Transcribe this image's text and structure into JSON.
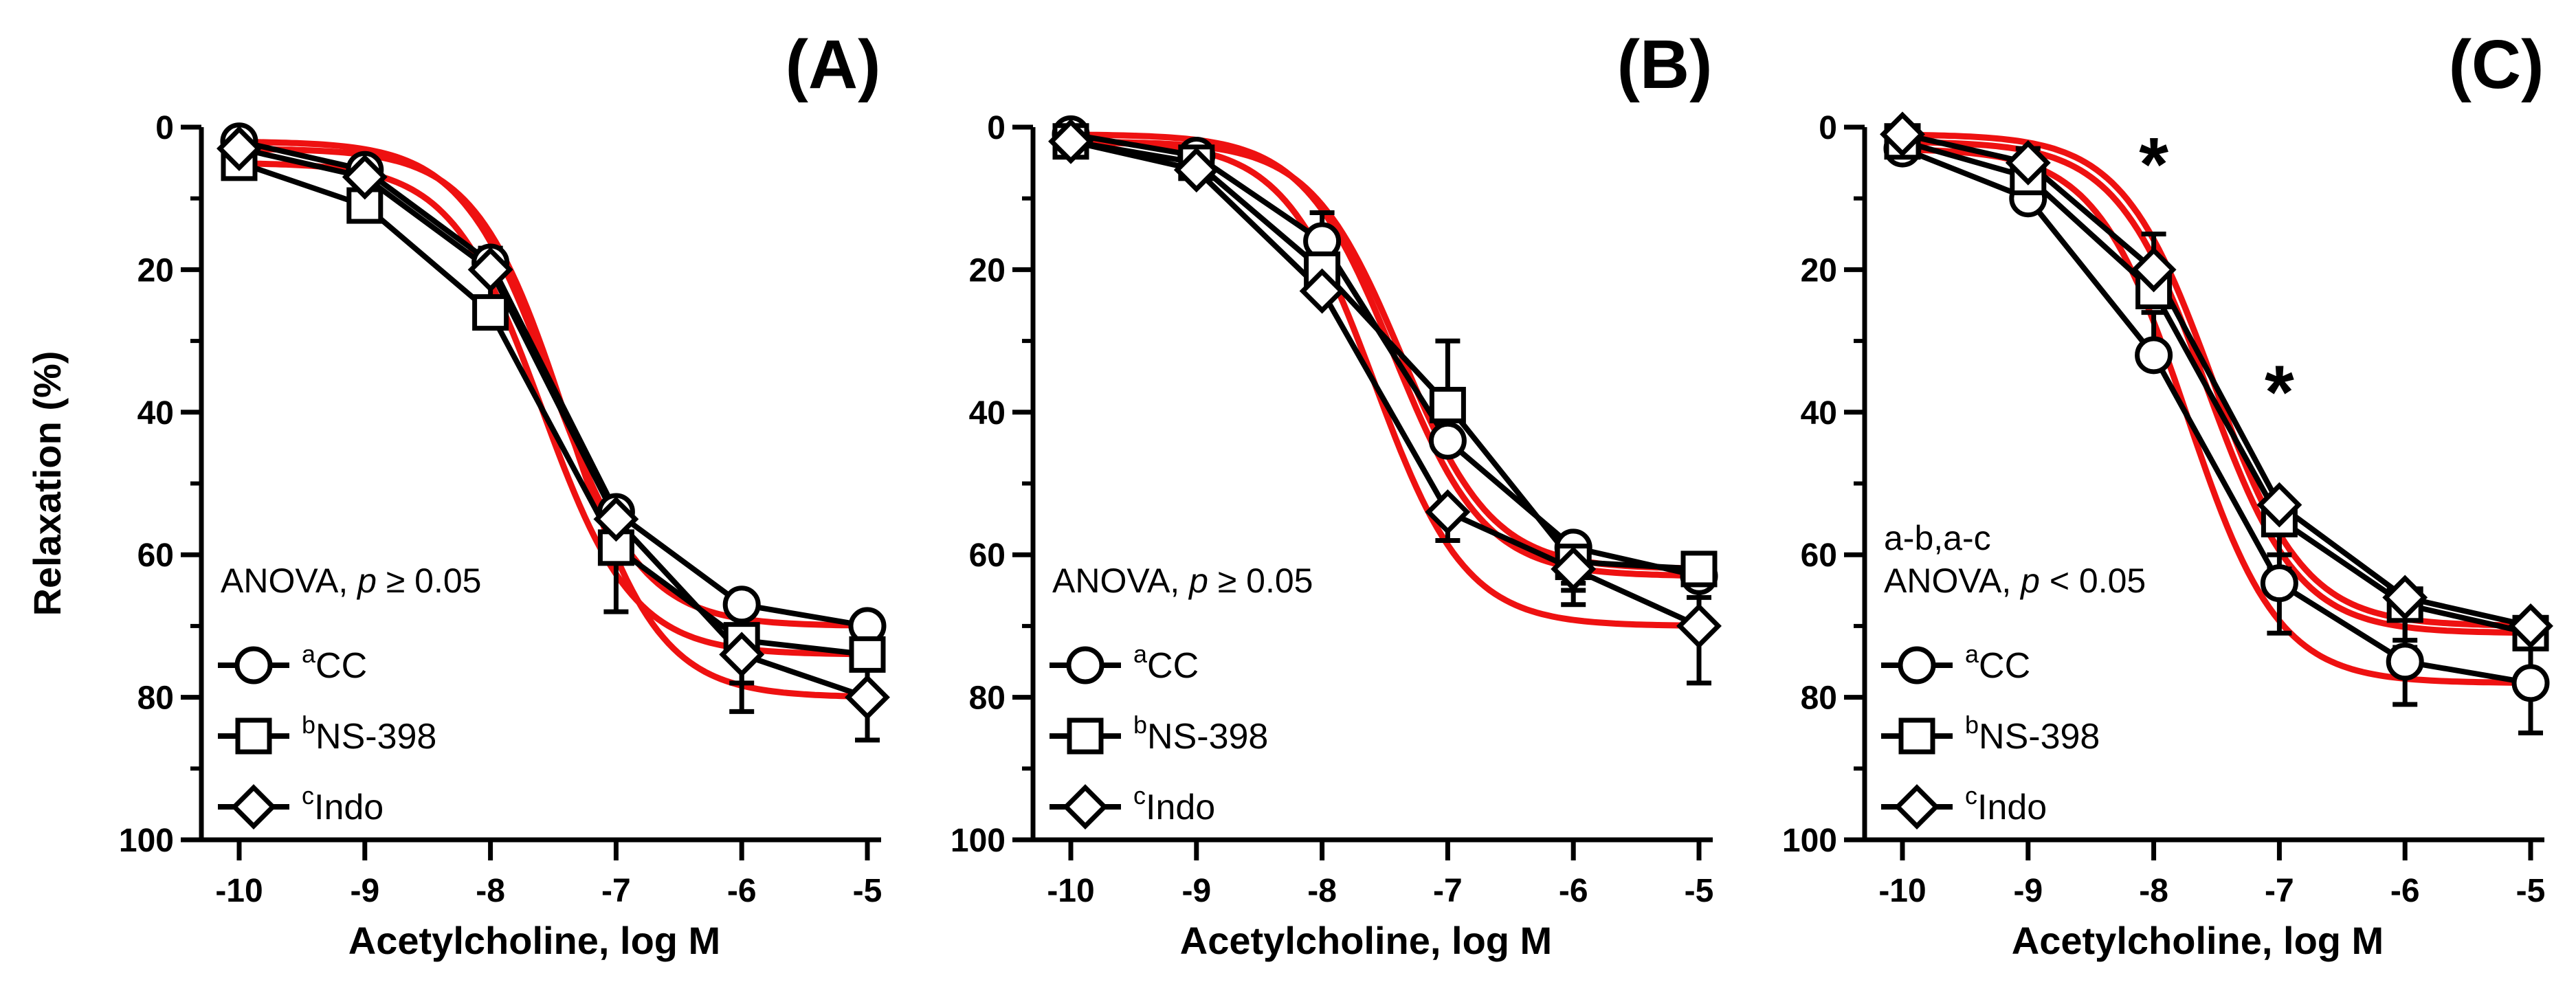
{
  "chart_data": [
    {
      "type": "line",
      "panel_label": "(A)",
      "xlabel": "Acetylcholine, log M",
      "ylabel": "Relaxation (%)",
      "x": [
        -10,
        -9,
        -8,
        -7,
        -6,
        -5
      ],
      "x_tick_labels": [
        "-10",
        "-9",
        "-8",
        "-7",
        "-6",
        "-5"
      ],
      "y_tick_labels": [
        "0",
        "20",
        "40",
        "60",
        "80",
        "100"
      ],
      "xlim": [
        -10,
        -5
      ],
      "ylim": [
        0,
        100
      ],
      "y_inverted": true,
      "annotation_prefix": "",
      "annotation_stat": "ANOVA, ",
      "annotation_p": "p",
      "annotation_value": " ≥ 0.05",
      "significance_markers": [],
      "series": [
        {
          "name": "CC",
          "superscript": "a",
          "marker": "circle",
          "values": [
            2,
            6,
            19,
            54,
            67,
            70
          ],
          "errors": [
            1,
            1,
            2,
            5,
            5,
            6
          ],
          "fit_color": "#ee1111"
        },
        {
          "name": "NS-398",
          "superscript": "b",
          "marker": "square",
          "values": [
            5,
            11,
            26,
            59,
            72,
            74
          ],
          "errors": [
            2,
            6,
            8,
            9,
            6,
            7
          ],
          "fit_color": "#ee1111"
        },
        {
          "name": "Indo",
          "superscript": "c",
          "marker": "diamond",
          "values": [
            3,
            7,
            20,
            55,
            74,
            80
          ],
          "errors": [
            2,
            2,
            3,
            5,
            8,
            6
          ],
          "fit_color": "#ee1111"
        }
      ]
    },
    {
      "type": "line",
      "panel_label": "(B)",
      "xlabel": "Acetylcholine, log M",
      "ylabel": "",
      "x": [
        -10,
        -9,
        -8,
        -7,
        -6,
        -5
      ],
      "x_tick_labels": [
        "-10",
        "-9",
        "-8",
        "-7",
        "-6",
        "-5"
      ],
      "y_tick_labels": [
        "0",
        "20",
        "40",
        "60",
        "80",
        "100"
      ],
      "xlim": [
        -10,
        -5
      ],
      "ylim": [
        0,
        100
      ],
      "y_inverted": true,
      "annotation_prefix": "",
      "annotation_stat": "ANOVA, ",
      "annotation_p": "p",
      "annotation_value": " ≥ 0.05",
      "significance_markers": [],
      "series": [
        {
          "name": "CC",
          "superscript": "a",
          "marker": "circle",
          "values": [
            1,
            4,
            16,
            44,
            59,
            63
          ],
          "errors": [
            1,
            1,
            4,
            6,
            5,
            6
          ],
          "fit_color": "#ee1111"
        },
        {
          "name": "NS-398",
          "superscript": "b",
          "marker": "square",
          "values": [
            2,
            5,
            20,
            39,
            61,
            62
          ],
          "errors": [
            2,
            2,
            4,
            9,
            4,
            4
          ],
          "fit_color": "#ee1111"
        },
        {
          "name": "Indo",
          "superscript": "c",
          "marker": "diamond",
          "values": [
            2,
            6,
            23,
            54,
            62,
            70
          ],
          "errors": [
            2,
            2,
            3,
            4,
            5,
            8
          ],
          "fit_color": "#ee1111"
        }
      ]
    },
    {
      "type": "line",
      "panel_label": "(C)",
      "xlabel": "Acetylcholine, log M",
      "ylabel": "",
      "x": [
        -10,
        -9,
        -8,
        -7,
        -6,
        -5
      ],
      "x_tick_labels": [
        "-10",
        "-9",
        "-8",
        "-7",
        "-6",
        "-5"
      ],
      "y_tick_labels": [
        "0",
        "20",
        "40",
        "60",
        "80",
        "100"
      ],
      "xlim": [
        -10,
        -5
      ],
      "ylim": [
        0,
        100
      ],
      "y_inverted": true,
      "annotation_prefix": "a-b,a-c",
      "annotation_stat": "ANOVA, ",
      "annotation_p": "p",
      "annotation_value": " < 0.05",
      "significance_markers": [
        {
          "x": -8,
          "y": 5,
          "label": "*"
        },
        {
          "x": -7,
          "y": 37,
          "label": "*"
        }
      ],
      "series": [
        {
          "name": "CC",
          "superscript": "a",
          "marker": "circle",
          "values": [
            3,
            10,
            32,
            64,
            75,
            78
          ],
          "errors": [
            1,
            3,
            6,
            7,
            6,
            7
          ],
          "fit_color": "#ee1111"
        },
        {
          "name": "NS-398",
          "superscript": "b",
          "marker": "square",
          "values": [
            2,
            7,
            23,
            55,
            67,
            71
          ],
          "errors": [
            1,
            2,
            4,
            7,
            5,
            6
          ],
          "fit_color": "#ee1111"
        },
        {
          "name": "Indo",
          "superscript": "c",
          "marker": "diamond",
          "values": [
            1,
            5,
            20,
            53,
            66,
            70
          ],
          "errors": [
            1,
            2,
            5,
            7,
            7,
            7
          ],
          "fit_color": "#ee1111"
        }
      ]
    }
  ]
}
